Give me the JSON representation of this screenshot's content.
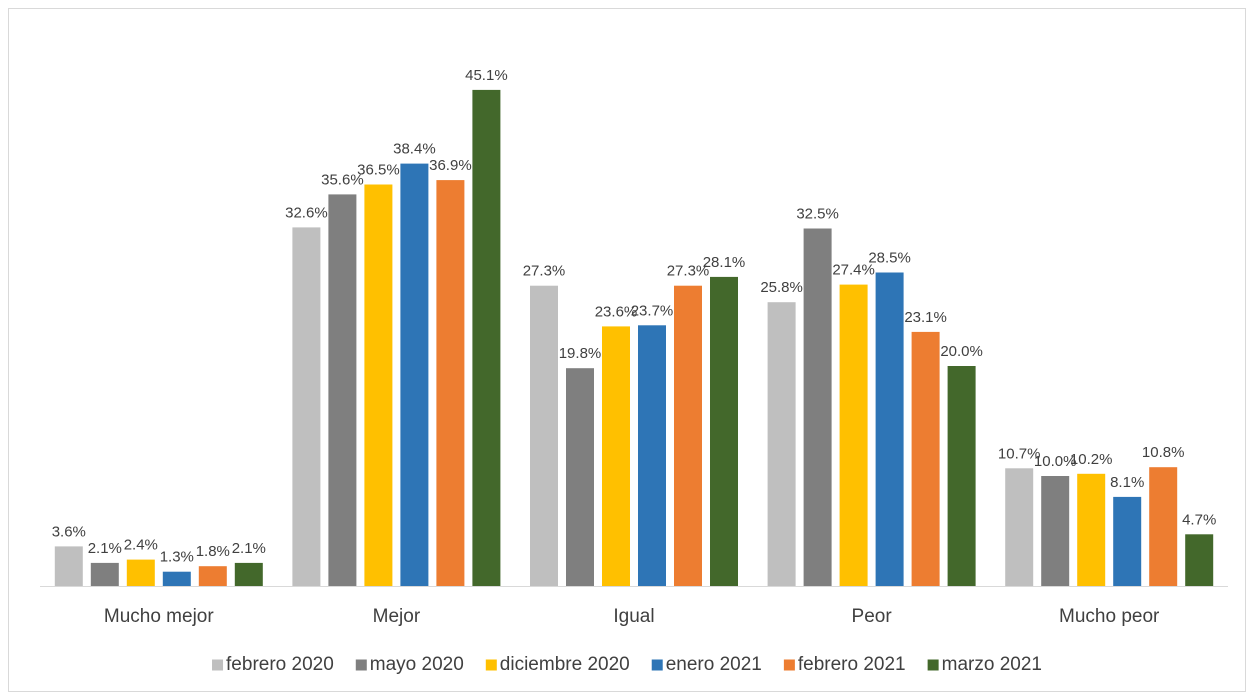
{
  "chart_data": {
    "type": "bar",
    "categories": [
      "Mucho mejor",
      "Mejor",
      "Igual",
      "Peor",
      "Mucho peor"
    ],
    "series": [
      {
        "name": "febrero 2020",
        "color": "#bfbfbf",
        "values": [
          3.6,
          32.6,
          27.3,
          25.8,
          10.7
        ],
        "value_labels": [
          "3.6%",
          "32.6%",
          "27.3%",
          "25.8%",
          "10.7%"
        ]
      },
      {
        "name": "mayo 2020",
        "color": "#7f7f7f",
        "values": [
          2.1,
          35.6,
          19.8,
          32.5,
          10.0
        ],
        "value_labels": [
          "2.1%",
          "35.6%",
          "19.8%",
          "32.5%",
          "10.0%"
        ]
      },
      {
        "name": "diciembre 2020",
        "color": "#ffc000",
        "values": [
          2.4,
          36.5,
          23.6,
          27.4,
          10.2
        ],
        "value_labels": [
          "2.4%",
          "36.5%",
          "23.6%",
          "27.4%",
          "10.2%"
        ]
      },
      {
        "name": "enero 2021",
        "color": "#2e75b6",
        "values": [
          1.3,
          38.4,
          23.7,
          28.5,
          8.1
        ],
        "value_labels": [
          "1.3%",
          "38.4%",
          "23.7%",
          "28.5%",
          "8.1%"
        ]
      },
      {
        "name": "febrero 2021",
        "color": "#ed7d31",
        "values": [
          1.8,
          36.9,
          27.3,
          23.1,
          10.8
        ],
        "value_labels": [
          "1.8%",
          "36.9%",
          "27.3%",
          "23.1%",
          "10.8%"
        ]
      },
      {
        "name": "marzo 2021",
        "color": "#43682b",
        "values": [
          2.1,
          45.1,
          28.1,
          20.0,
          4.7
        ],
        "value_labels": [
          "2.1%",
          "45.1%",
          "28.1%",
          "20.0%",
          "4.7%"
        ]
      }
    ],
    "ylim": [
      0,
      50
    ]
  }
}
